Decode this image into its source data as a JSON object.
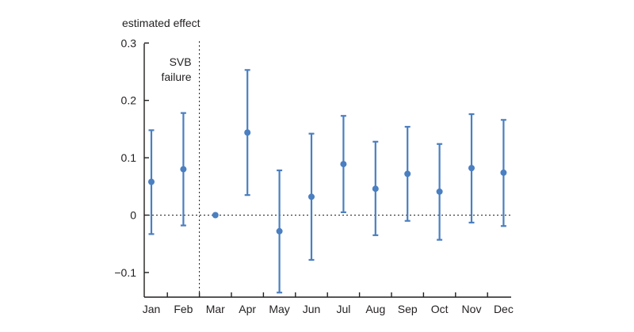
{
  "chart_data": {
    "type": "scatter",
    "title": "",
    "ylabel": "estimated effect",
    "xlabel": "",
    "ylim": [
      -0.145,
      0.3
    ],
    "yticks": [
      0.3,
      0.2,
      0.1,
      0,
      -0.1
    ],
    "ytick_labels": [
      "0.3",
      "0.2",
      "0.1",
      "0",
      "−0.1"
    ],
    "categories": [
      "Jan",
      "Feb",
      "Mar",
      "Apr",
      "May",
      "Jun",
      "Jul",
      "Aug",
      "Sep",
      "Oct",
      "Nov",
      "Dec"
    ],
    "series": [
      {
        "name": "estimated effect",
        "values": [
          0.058,
          0.08,
          0.0,
          0.144,
          -0.028,
          0.032,
          0.089,
          0.046,
          0.072,
          0.041,
          0.082,
          0.074
        ],
        "lower": [
          -0.033,
          -0.018,
          0.0,
          0.035,
          -0.135,
          -0.078,
          0.005,
          -0.035,
          -0.01,
          -0.043,
          -0.013,
          -0.019
        ],
        "upper": [
          0.148,
          0.178,
          0.0,
          0.253,
          0.078,
          0.142,
          0.173,
          0.128,
          0.154,
          0.124,
          0.176,
          0.166
        ]
      }
    ],
    "annotation": {
      "lines": [
        "SVB",
        "failure"
      ],
      "at_category": "Mar"
    },
    "reference_line_y": 0,
    "color": "#4a7fc1"
  }
}
